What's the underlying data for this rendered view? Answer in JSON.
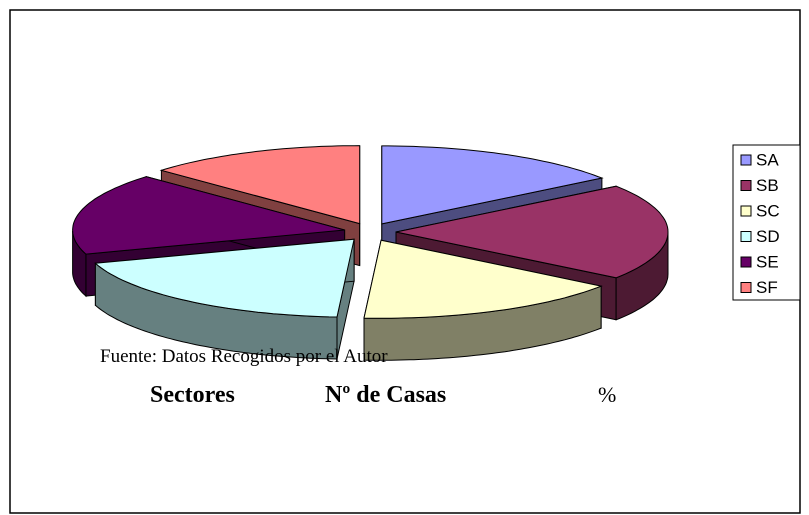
{
  "chart_data": {
    "type": "pie3d",
    "categories": [
      "SA",
      "SB",
      "SC",
      "SD",
      "SE",
      "SF"
    ],
    "values": [
      15,
      20,
      16,
      19,
      17,
      13
    ],
    "colors": [
      "#9999ff",
      "#993366",
      "#ffffcc",
      "#ccffff",
      "#660066",
      "#ff8080"
    ],
    "legend": "right",
    "source": "Fuente:  Datos Recogidos por el Autor",
    "headers": [
      "Sectores",
      "Nº de Casas",
      "%"
    ]
  }
}
